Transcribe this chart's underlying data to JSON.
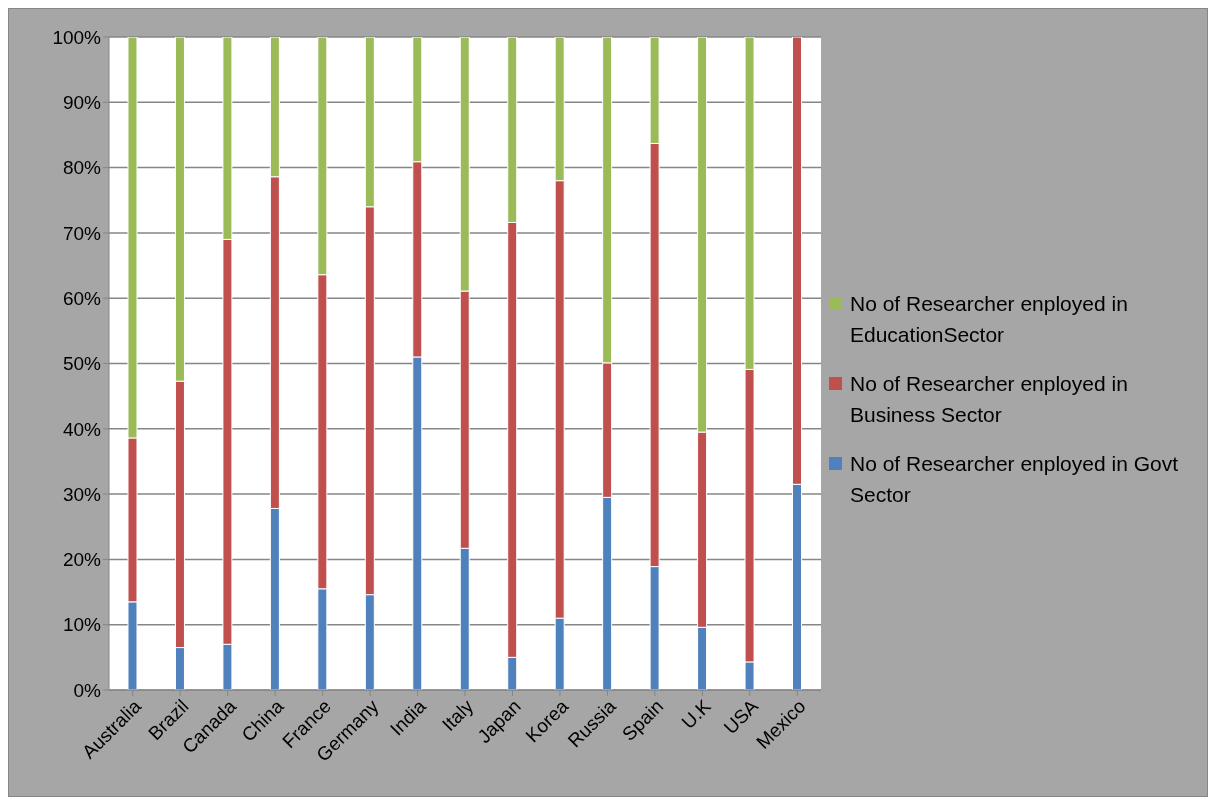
{
  "chart_data": {
    "type": "bar",
    "stacked": true,
    "categories": [
      "Australia",
      "Brazil",
      "Canada",
      "China",
      "France",
      "Germany",
      "India",
      "Italy",
      "Japan",
      "Korea",
      "Russia",
      "Spain",
      "U.K",
      "USA",
      "Mexico"
    ],
    "series": [
      {
        "name": "No of Researcher enployed in Govt Sector",
        "color": "#4f81bd",
        "values": [
          13.5,
          6.5,
          7.0,
          27.8,
          15.5,
          14.6,
          51.0,
          21.7,
          5.0,
          11.0,
          29.5,
          18.9,
          9.6,
          4.3,
          31.5
        ]
      },
      {
        "name": "No of Researcher enployed in Business Sector",
        "color": "#c0504d",
        "values": [
          25.1,
          40.8,
          62.0,
          50.8,
          48.1,
          59.4,
          29.9,
          39.4,
          66.6,
          67.0,
          20.6,
          64.8,
          29.9,
          44.8,
          68.5
        ]
      },
      {
        "name": "No of Researcher enployed in EducationSector",
        "color": "#9bbb59",
        "values": [
          61.4,
          52.7,
          31.0,
          21.4,
          36.4,
          26.0,
          19.1,
          38.9,
          28.4,
          22.0,
          49.9,
          16.3,
          60.5,
          50.9,
          0
        ]
      }
    ],
    "ylim": [
      0,
      100
    ],
    "yticks": [
      {
        "value": 0,
        "label": "0%"
      },
      {
        "value": 10,
        "label": "10%"
      },
      {
        "value": 20,
        "label": "20%"
      },
      {
        "value": 30,
        "label": "30%"
      },
      {
        "value": 40,
        "label": "40%"
      },
      {
        "value": 50,
        "label": "50%"
      },
      {
        "value": 60,
        "label": "60%"
      },
      {
        "value": 70,
        "label": "70%"
      },
      {
        "value": 80,
        "label": "80%"
      },
      {
        "value": 90,
        "label": "90%"
      },
      {
        "value": 100,
        "label": "100%"
      }
    ],
    "grid": "y",
    "legend": "right"
  }
}
